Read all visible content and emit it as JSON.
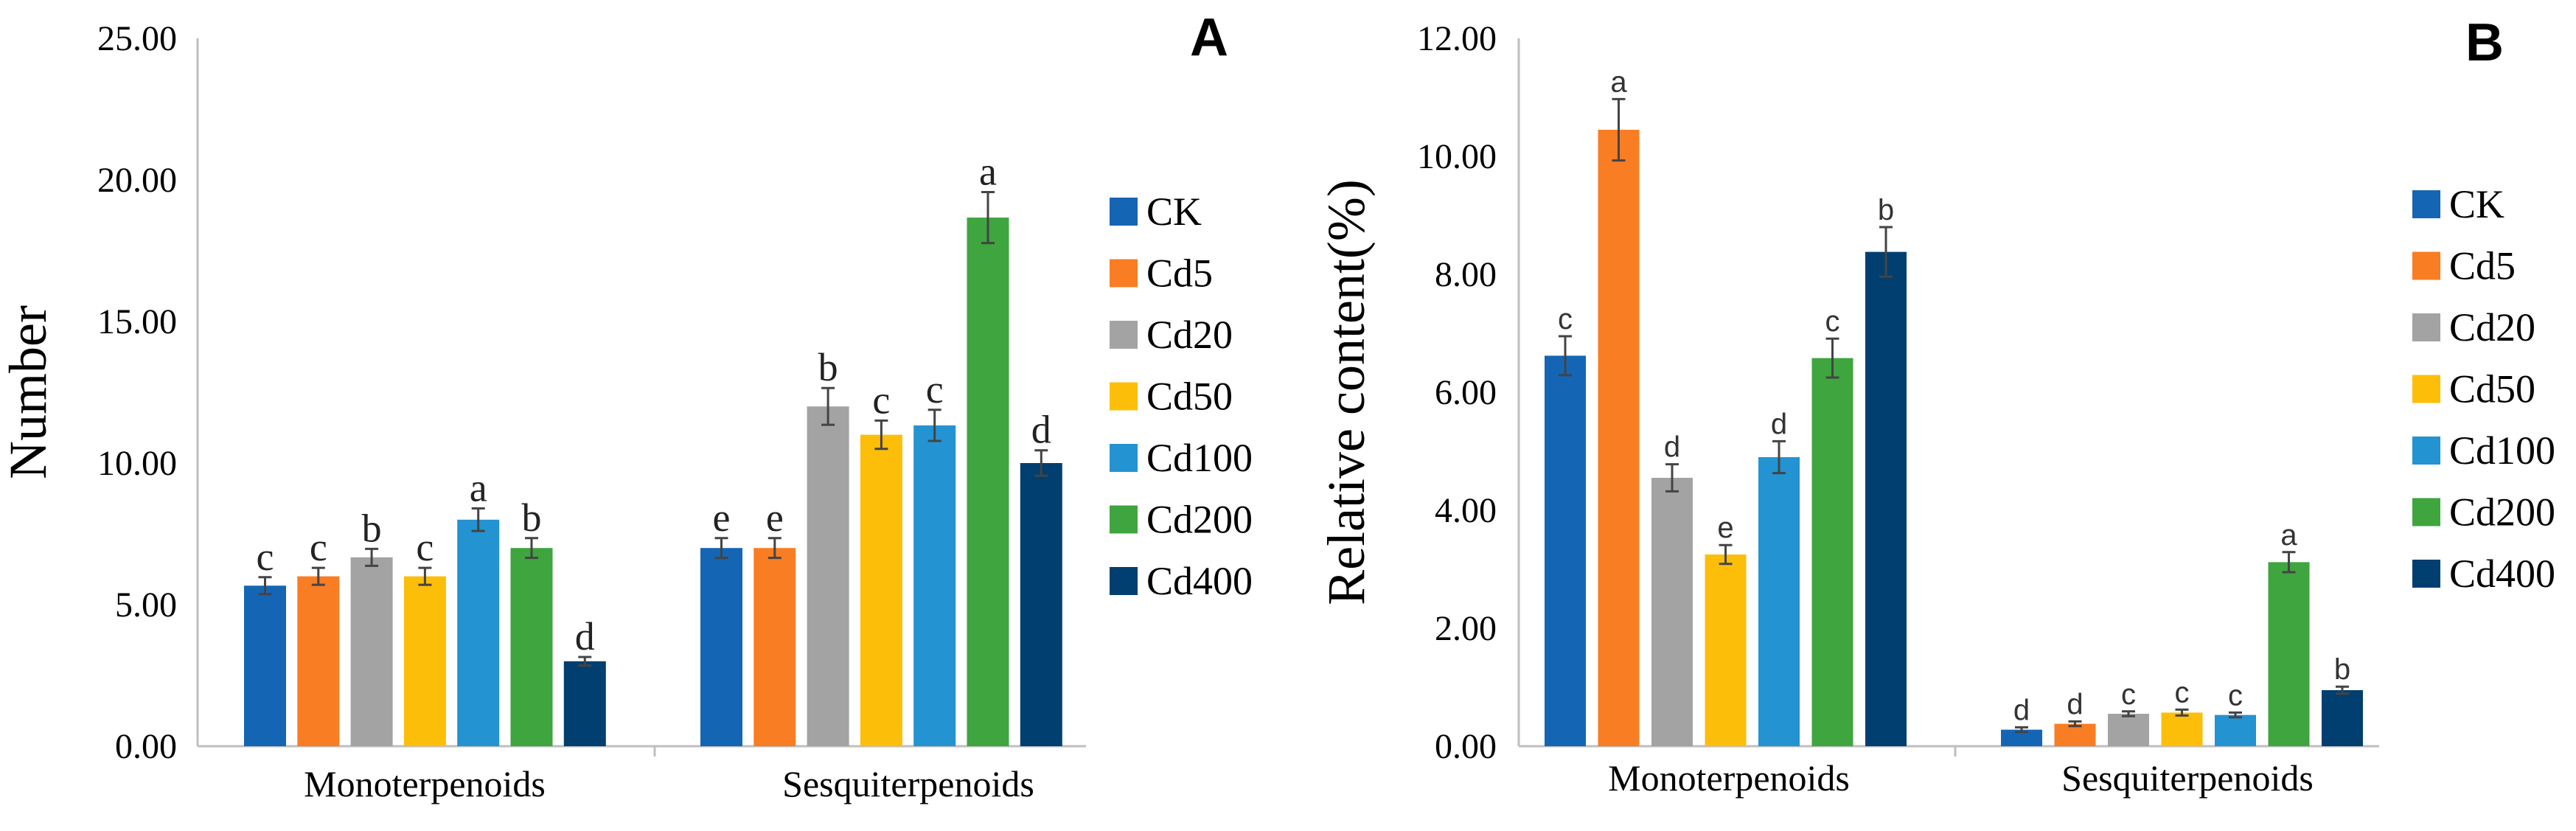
{
  "colors": {
    "CK": "#1565b5",
    "Cd5": "#f97d23",
    "Cd20": "#a3a3a3",
    "Cd50": "#fdbe0a",
    "Cd100": "#2393d2",
    "Cd200": "#3fa53f",
    "Cd400": "#003f70",
    "axis": "#bfbfbf",
    "error": "#444444"
  },
  "chart_data": [
    {
      "type": "bar",
      "panel_label": "A",
      "title": "",
      "xlabel": "",
      "ylabel": "Number",
      "ylim": [
        0,
        25
      ],
      "yticks": [
        "0.00",
        "5.00",
        "10.00",
        "15.00",
        "20.00",
        "25.00"
      ],
      "categories": [
        "Monoterpenoids",
        "Sesquiterpenoids"
      ],
      "legend_position": "right",
      "series": [
        {
          "name": "CK",
          "values": [
            5.67,
            7.0
          ],
          "errors": [
            0.3,
            0.35
          ],
          "letters": [
            "c",
            "e"
          ]
        },
        {
          "name": "Cd5",
          "values": [
            6.0,
            7.0
          ],
          "errors": [
            0.3,
            0.35
          ],
          "letters": [
            "c",
            "e"
          ]
        },
        {
          "name": "Cd20",
          "values": [
            6.67,
            12.0
          ],
          "errors": [
            0.3,
            0.65
          ],
          "letters": [
            "b",
            "b"
          ]
        },
        {
          "name": "Cd50",
          "values": [
            6.0,
            11.0
          ],
          "errors": [
            0.3,
            0.5
          ],
          "letters": [
            "c",
            "c"
          ]
        },
        {
          "name": "Cd100",
          "values": [
            8.0,
            11.33
          ],
          "errors": [
            0.4,
            0.55
          ],
          "letters": [
            "a",
            "c"
          ]
        },
        {
          "name": "Cd200",
          "values": [
            7.0,
            18.67
          ],
          "errors": [
            0.35,
            0.9
          ],
          "letters": [
            "b",
            "a"
          ]
        },
        {
          "name": "Cd400",
          "values": [
            3.0,
            10.0
          ],
          "errors": [
            0.15,
            0.45
          ],
          "letters": [
            "d",
            "d"
          ]
        }
      ]
    },
    {
      "type": "bar",
      "panel_label": "B",
      "title": "",
      "xlabel": "",
      "ylabel": "Relative content(%)",
      "ylim": [
        0,
        12
      ],
      "yticks": [
        "0.00",
        "2.00",
        "4.00",
        "6.00",
        "8.00",
        "10.00",
        "12.00"
      ],
      "categories": [
        "Monoterpenoids",
        "Sesquiterpenoids"
      ],
      "legend_position": "right",
      "series": [
        {
          "name": "CK",
          "values": [
            6.62,
            0.28
          ],
          "errors": [
            0.33,
            0.04
          ],
          "letters": [
            "c",
            "d"
          ]
        },
        {
          "name": "Cd5",
          "values": [
            10.45,
            0.38
          ],
          "errors": [
            0.52,
            0.04
          ],
          "letters": [
            "a",
            "d"
          ]
        },
        {
          "name": "Cd20",
          "values": [
            4.55,
            0.55
          ],
          "errors": [
            0.23,
            0.04
          ],
          "letters": [
            "d",
            "c"
          ]
        },
        {
          "name": "Cd50",
          "values": [
            3.25,
            0.57
          ],
          "errors": [
            0.16,
            0.05
          ],
          "letters": [
            "e",
            "c"
          ]
        },
        {
          "name": "Cd100",
          "values": [
            4.9,
            0.53
          ],
          "errors": [
            0.27,
            0.04
          ],
          "letters": [
            "d",
            "c"
          ]
        },
        {
          "name": "Cd200",
          "values": [
            6.58,
            3.12
          ],
          "errors": [
            0.33,
            0.17
          ],
          "letters": [
            "c",
            "a"
          ]
        },
        {
          "name": "Cd400",
          "values": [
            8.38,
            0.95
          ],
          "errors": [
            0.42,
            0.06
          ],
          "letters": [
            "b",
            "b"
          ]
        }
      ]
    }
  ]
}
